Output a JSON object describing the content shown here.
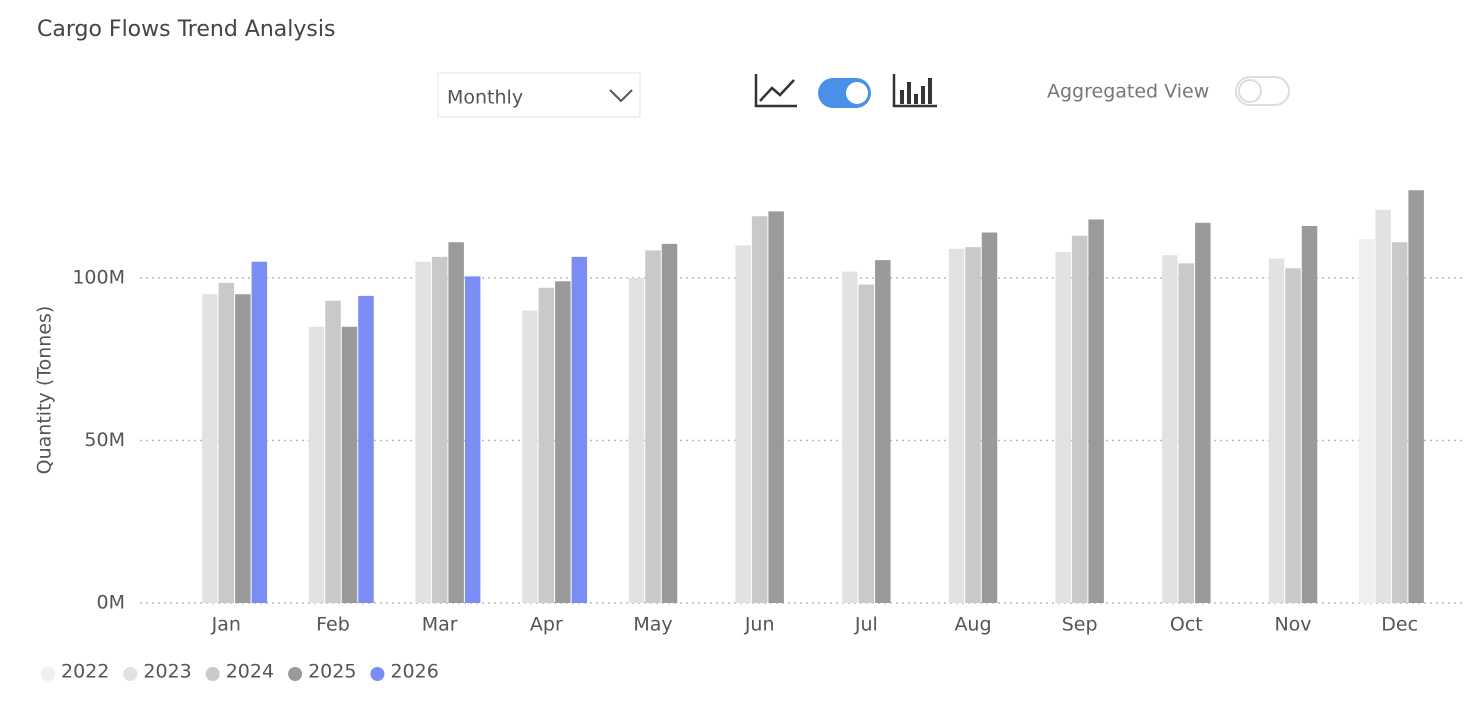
{
  "chart_data": {
    "type": "bar",
    "title": "Cargo Flows Trend Analysis",
    "y_label": "Quantity (Tonnes)",
    "categories": [
      "Jan",
      "Feb",
      "Mar",
      "Apr",
      "May",
      "Jun",
      "Jul",
      "Aug",
      "Sep",
      "Oct",
      "Nov",
      "Dec"
    ],
    "series": [
      {
        "name": "2022",
        "color": "#efefef",
        "values": [
          null,
          null,
          null,
          null,
          null,
          null,
          null,
          null,
          null,
          null,
          null,
          112
        ]
      },
      {
        "name": "2023",
        "color": "#e2e2e2",
        "values": [
          95,
          85,
          105,
          90,
          100,
          110,
          102,
          109,
          108,
          107,
          106,
          121
        ]
      },
      {
        "name": "2024",
        "color": "#c9c9c9",
        "values": [
          98.5,
          93,
          106.5,
          97,
          108.5,
          119,
          98,
          109.5,
          113,
          104.5,
          103,
          111
        ]
      },
      {
        "name": "2025",
        "color": "#9a9a9a",
        "values": [
          95,
          85,
          111,
          99,
          110.5,
          120.5,
          105.5,
          114,
          118,
          117,
          116,
          127
        ]
      },
      {
        "name": "2026",
        "color": "#7b8cf5",
        "values": [
          105,
          94.5,
          100.5,
          106.5,
          null,
          null,
          null,
          null,
          null,
          null,
          null,
          null
        ]
      }
    ],
    "ylim": [
      0,
      130
    ],
    "yticks": [
      {
        "value": 0,
        "label": "0M"
      },
      {
        "value": 50,
        "label": "50M"
      },
      {
        "value": 100,
        "label": "100M"
      }
    ],
    "grid": true,
    "legend": "bottom-left"
  },
  "controls": {
    "period": "Monthly",
    "aggregated_label": "Aggregated View"
  }
}
